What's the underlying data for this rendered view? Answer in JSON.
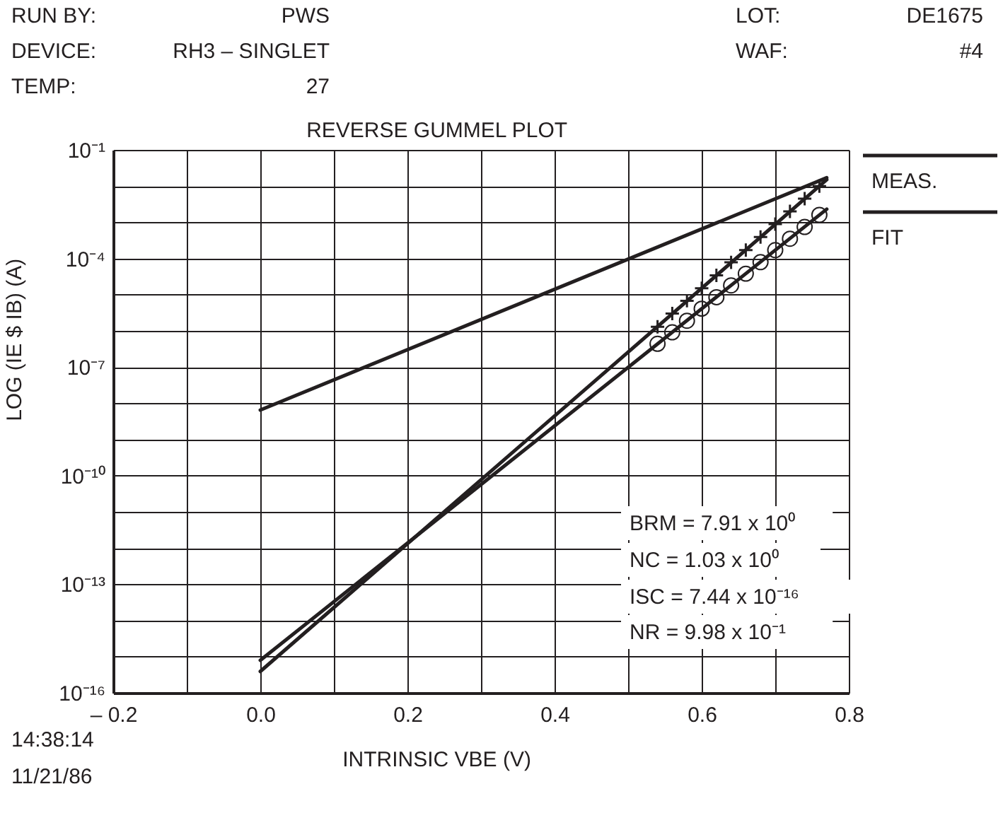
{
  "chart_data": {
    "type": "line",
    "title": "REVERSE GUMMEL PLOT",
    "xlabel": "INTRINSIC VBE (V)",
    "ylabel": "LOG (IE $ IB) (A)",
    "log": "y",
    "grid": true,
    "legend": "top right",
    "xlim": [
      -0.2,
      0.8
    ],
    "ylim": [
      1e-16,
      0.1
    ],
    "xticks": [
      {
        "value": -0.2,
        "label": "– 0.2"
      },
      {
        "value": -0.1,
        "label": null
      },
      {
        "value": 0,
        "label": "0.0"
      },
      {
        "value": 0.1,
        "label": null
      },
      {
        "value": 0.2,
        "label": "0.2"
      },
      {
        "value": 0.3,
        "label": null
      },
      {
        "value": 0.4,
        "label": "0.4"
      },
      {
        "value": 0.5,
        "label": null
      },
      {
        "value": 0.6,
        "label": "0.6"
      },
      {
        "value": 0.7,
        "label": null
      },
      {
        "value": 0.8,
        "label": "0.8"
      }
    ],
    "yticks": [
      {
        "value": 0.1,
        "label": "10⁻¹"
      },
      {
        "value": 0.01,
        "label": null
      },
      {
        "value": 0.001,
        "label": null
      },
      {
        "value": 0.0001,
        "label": "10⁻⁴"
      },
      {
        "value": 1e-05,
        "label": null
      },
      {
        "value": 1e-06,
        "label": null
      },
      {
        "value": 1e-07,
        "label": "10⁻⁷"
      },
      {
        "value": 1e-08,
        "label": null
      },
      {
        "value": 1e-09,
        "label": null
      },
      {
        "value": 1e-10,
        "label": "10⁻¹⁰"
      },
      {
        "value": 1e-11,
        "label": null
      },
      {
        "value": 1e-12,
        "label": null
      },
      {
        "value": 1e-13,
        "label": "10⁻¹³"
      },
      {
        "value": 1e-14,
        "label": null
      },
      {
        "value": 1e-15,
        "label": null
      },
      {
        "value": 1e-16,
        "label": "10⁻¹⁶"
      }
    ],
    "series": [
      {
        "marker": "none",
        "line_style": "solid",
        "color": "#231f20",
        "x": [
          0,
          0.77
        ],
        "values": [
          6.5e-09,
          0.017
        ]
      },
      {
        "marker": "none",
        "line_style": "solid",
        "color": "#231f20",
        "x": [
          0,
          0.77
        ],
        "values": [
          3.9e-16,
          0.015
        ]
      },
      {
        "name": "FIT",
        "marker": "none",
        "line_style": "solid",
        "color": "#231f20",
        "x": [
          0,
          0.77
        ],
        "values": [
          7.9e-16,
          0.0023
        ]
      },
      {
        "name": "MEAS.",
        "type": "scatter",
        "marker": "cross",
        "color": "#231f20",
        "x": [
          0.54,
          0.56,
          0.58,
          0.6,
          0.62,
          0.64,
          0.66,
          0.68,
          0.7,
          0.72,
          0.74,
          0.76
        ],
        "values": [
          1.3e-06,
          3e-06,
          6.8e-06,
          1.5e-05,
          3.4e-05,
          7.8e-05,
          0.00017,
          0.00039,
          0.00089,
          0.002,
          0.0045,
          0.01
        ]
      },
      {
        "type": "scatter",
        "marker": "circle",
        "color": "#231f20",
        "x": [
          0.54,
          0.56,
          0.58,
          0.6,
          0.62,
          0.64,
          0.66,
          0.68,
          0.7,
          0.72,
          0.74,
          0.76
        ],
        "values": [
          4.4e-07,
          9.1e-07,
          1.9e-06,
          4.1e-06,
          8.5e-06,
          1.8e-05,
          3.8e-05,
          7.9e-05,
          0.00017,
          0.00035,
          0.00074,
          0.0016
        ]
      }
    ],
    "annotations": [
      "RUN BY:",
      "PWS",
      "DEVICE:",
      "RH3 – SINGLET",
      "TEMP:",
      "27",
      "LOT:",
      "DE1675",
      "WAF:",
      "#4",
      "14:38:14",
      "11/21/86",
      "BRM = 7.91 x 10⁰",
      "NC = 1.03 x 10⁰",
      "ISC = 7.44 x 10⁻¹⁶",
      "NR = 9.98 x 10⁻¹"
    ]
  }
}
